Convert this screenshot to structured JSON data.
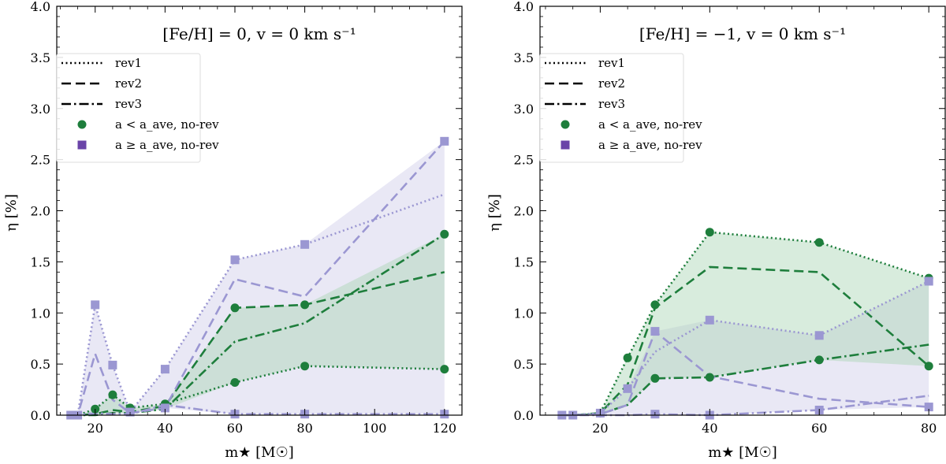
{
  "colors": {
    "green": "#1e7e3c",
    "purple": "#9b97d2",
    "purple_marker": "#6a44a8",
    "green_fill": "#a8d5b3",
    "purple_fill": "#dad9ee"
  },
  "legend": {
    "rev1": "rev1",
    "rev2": "rev2",
    "rev3": "rev3",
    "a_less": "a < a_ave, no-rev",
    "a_geq": "a ≥ a_ave, no-rev"
  },
  "chart_data": [
    {
      "type": "line",
      "title": "[Fe/H] = 0, v = 0 km s⁻¹",
      "xlabel": "m★ [M☉]",
      "ylabel": "η [%]",
      "xlim": [
        9,
        125
      ],
      "ylim": [
        0,
        4
      ],
      "xticks": [
        20,
        40,
        60,
        80,
        100,
        120
      ],
      "yticks": [
        0.0,
        0.5,
        1.0,
        1.5,
        2.0,
        2.5,
        3.0,
        3.5,
        4.0
      ],
      "ytick_labels": [
        "0.0",
        "0.5",
        "1.0",
        "1.5",
        "2.0",
        "2.5",
        "3.0",
        "3.5",
        "4.0"
      ],
      "x": [
        13,
        15,
        20,
        25,
        30,
        40,
        60,
        80,
        120
      ],
      "series": [
        {
          "name": "green rev1",
          "group": "green",
          "style": "rev1",
          "markers": true,
          "values": [
            0,
            0,
            0.06,
            0.2,
            0.07,
            0.11,
            0.32,
            0.48,
            0.45
          ]
        },
        {
          "name": "green rev2",
          "group": "green",
          "style": "rev2",
          "markers": false,
          "values": [
            0,
            0,
            0.01,
            0.05,
            0.03,
            0.09,
            1.05,
            1.08,
            1.4
          ]
        },
        {
          "name": "green rev3",
          "group": "green",
          "style": "rev3",
          "markers": false,
          "values": [
            0,
            0,
            0.0,
            0.02,
            0.02,
            0.06,
            0.72,
            0.9,
            1.77
          ]
        },
        {
          "name": "purple rev1",
          "group": "purple",
          "style": "rev1",
          "markers": true,
          "values": [
            0,
            0,
            1.08,
            0.49,
            0.03,
            0.45,
            1.52,
            1.67,
            2.16
          ]
        },
        {
          "name": "purple rev2",
          "group": "purple",
          "style": "rev2",
          "markers": false,
          "values": [
            0,
            0,
            0.6,
            0.15,
            0.02,
            0.07,
            1.33,
            1.16,
            2.68
          ]
        },
        {
          "name": "purple rev3",
          "group": "purple",
          "style": "rev3",
          "markers": false,
          "values": [
            0,
            0,
            0.02,
            0.01,
            0.01,
            0.1,
            0.01,
            0.01,
            0.01
          ]
        }
      ],
      "markers": {
        "green": [
          [
            20,
            0.06
          ],
          [
            25,
            0.2
          ],
          [
            30,
            0.07
          ],
          [
            40,
            0.11
          ],
          [
            60,
            0.32
          ],
          [
            60,
            1.05
          ],
          [
            80,
            0.48
          ],
          [
            80,
            1.08
          ],
          [
            120,
            0.45
          ],
          [
            120,
            1.77
          ]
        ],
        "purple": [
          [
            13,
            0
          ],
          [
            15,
            0
          ],
          [
            20,
            1.08
          ],
          [
            25,
            0.49
          ],
          [
            30,
            0.03
          ],
          [
            40,
            0.45
          ],
          [
            40,
            0.07
          ],
          [
            60,
            1.52
          ],
          [
            60,
            0.01
          ],
          [
            80,
            1.67
          ],
          [
            80,
            0.01
          ],
          [
            120,
            2.68
          ],
          [
            120,
            0.01
          ]
        ]
      }
    },
    {
      "type": "line",
      "title": "[Fe/H] = −1, v = 0 km s⁻¹",
      "xlabel": "m★ [M☉]",
      "ylabel": "η [%]",
      "xlim": [
        9,
        83
      ],
      "ylim": [
        0,
        4
      ],
      "xticks": [
        20,
        40,
        60,
        80
      ],
      "yticks": [
        0.0,
        0.5,
        1.0,
        1.5,
        2.0,
        2.5,
        3.0,
        3.5,
        4.0
      ],
      "ytick_labels": [
        "0.0",
        "0.5",
        "1.0",
        "1.5",
        "2.0",
        "2.5",
        "3.0",
        "3.5",
        "4.0"
      ],
      "x": [
        13,
        15,
        20,
        25,
        30,
        40,
        60,
        80
      ],
      "series": [
        {
          "name": "green rev1",
          "group": "green",
          "style": "rev1",
          "markers": true,
          "values": [
            0,
            0,
            0.02,
            0.56,
            1.08,
            1.79,
            1.69,
            1.34
          ]
        },
        {
          "name": "green rev2",
          "group": "green",
          "style": "rev2",
          "markers": false,
          "values": [
            0,
            0,
            0.02,
            0.3,
            1.05,
            1.45,
            1.4,
            0.48
          ]
        },
        {
          "name": "green rev3",
          "group": "green",
          "style": "rev3",
          "markers": false,
          "values": [
            0,
            0,
            0.01,
            0.1,
            0.36,
            0.37,
            0.54,
            0.69
          ]
        },
        {
          "name": "purple rev1",
          "group": "purple",
          "style": "rev1",
          "markers": true,
          "values": [
            0,
            0,
            0.02,
            0.26,
            0.62,
            0.93,
            0.78,
            1.31
          ]
        },
        {
          "name": "purple rev2",
          "group": "purple",
          "style": "rev2",
          "markers": false,
          "values": [
            0,
            0,
            0.01,
            0.1,
            0.82,
            0.38,
            0.16,
            0.08
          ]
        },
        {
          "name": "purple rev3",
          "group": "purple",
          "style": "rev3",
          "markers": false,
          "values": [
            0,
            0,
            0.0,
            0.0,
            0.01,
            0.0,
            0.05,
            0.19
          ]
        }
      ],
      "markers": {
        "green": [
          [
            20,
            0.02
          ],
          [
            25,
            0.56
          ],
          [
            30,
            1.08
          ],
          [
            30,
            0.36
          ],
          [
            40,
            1.79
          ],
          [
            40,
            0.37
          ],
          [
            60,
            1.69
          ],
          [
            60,
            0.54
          ],
          [
            80,
            1.34
          ],
          [
            80,
            0.48
          ]
        ],
        "purple": [
          [
            13,
            0
          ],
          [
            15,
            0
          ],
          [
            20,
            0.02
          ],
          [
            25,
            0.26
          ],
          [
            30,
            0.82
          ],
          [
            30,
            0.01
          ],
          [
            40,
            0.93
          ],
          [
            40,
            0.0
          ],
          [
            60,
            0.78
          ],
          [
            60,
            0.05
          ],
          [
            80,
            1.31
          ],
          [
            80,
            0.08
          ]
        ]
      }
    }
  ]
}
